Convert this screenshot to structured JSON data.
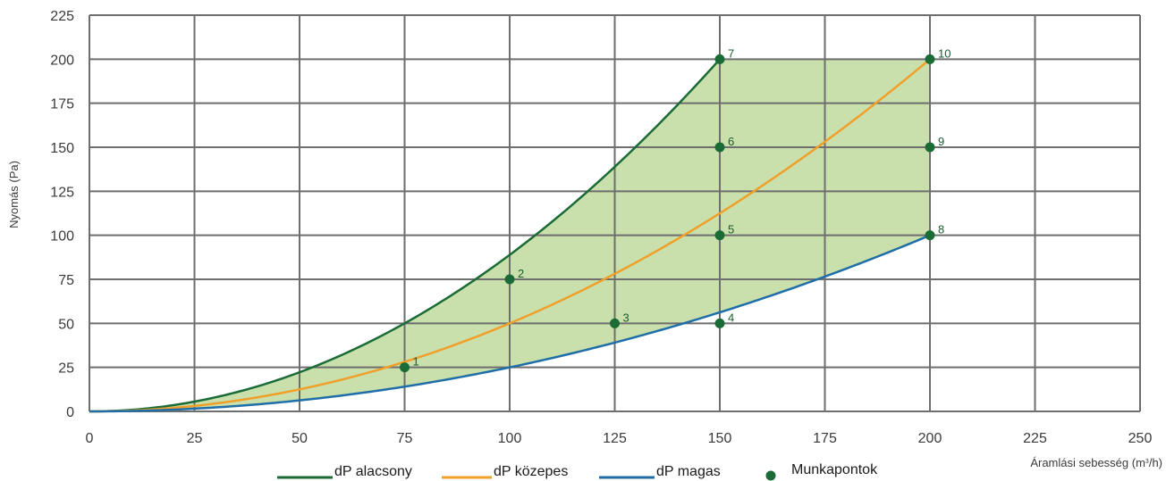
{
  "chart_data": {
    "type": "line",
    "xlabel": "Áramlási sebesség (m³/h)",
    "ylabel": "Nyomás (Pa)",
    "xlim": [
      0,
      250
    ],
    "ylim": [
      0,
      225
    ],
    "x_ticks": [
      "0",
      "25",
      "50",
      "75",
      "100",
      "125",
      "150",
      "175",
      "200",
      "225",
      "250"
    ],
    "y_ticks": [
      "0",
      "25",
      "50",
      "75",
      "100",
      "125",
      "150",
      "175",
      "200",
      "225"
    ],
    "grid": true,
    "legend_position": "bottom",
    "series": [
      {
        "name": "dP alacsony",
        "color": "#1a6b35",
        "x": [
          0,
          25,
          50,
          75,
          100,
          125,
          150
        ],
        "y": [
          0,
          5.6,
          22.2,
          50,
          88.9,
          138.9,
          200
        ]
      },
      {
        "name": "dP közepes",
        "color": "#f0a02a",
        "x": [
          0,
          25,
          50,
          75,
          100,
          125,
          150,
          175,
          200
        ],
        "y": [
          0,
          3.1,
          12.5,
          28.1,
          50,
          78.1,
          112.5,
          153.1,
          200
        ]
      },
      {
        "name": "dP magas",
        "color": "#1f6ea8",
        "x": [
          0,
          25,
          50,
          75,
          100,
          125,
          150,
          175,
          200
        ],
        "y": [
          0,
          1.6,
          6.3,
          14.1,
          25,
          39.1,
          56.3,
          76.6,
          100
        ]
      }
    ],
    "operating_area": {
      "color": "#c9e0ac",
      "upper_limit_y": 200,
      "right_limit_x": 200
    },
    "points": {
      "name": "Munkapontok",
      "color": "#1a6b35",
      "items": [
        {
          "label": "1",
          "x": 75,
          "y": 25
        },
        {
          "label": "2",
          "x": 100,
          "y": 75
        },
        {
          "label": "3",
          "x": 125,
          "y": 50
        },
        {
          "label": "4",
          "x": 150,
          "y": 50
        },
        {
          "label": "5",
          "x": 150,
          "y": 100
        },
        {
          "label": "6",
          "x": 150,
          "y": 150
        },
        {
          "label": "7",
          "x": 150,
          "y": 200
        },
        {
          "label": "8",
          "x": 200,
          "y": 100
        },
        {
          "label": "9",
          "x": 200,
          "y": 150
        },
        {
          "label": "10",
          "x": 200,
          "y": 200
        }
      ]
    },
    "grid_color": "#6e6e6e"
  }
}
